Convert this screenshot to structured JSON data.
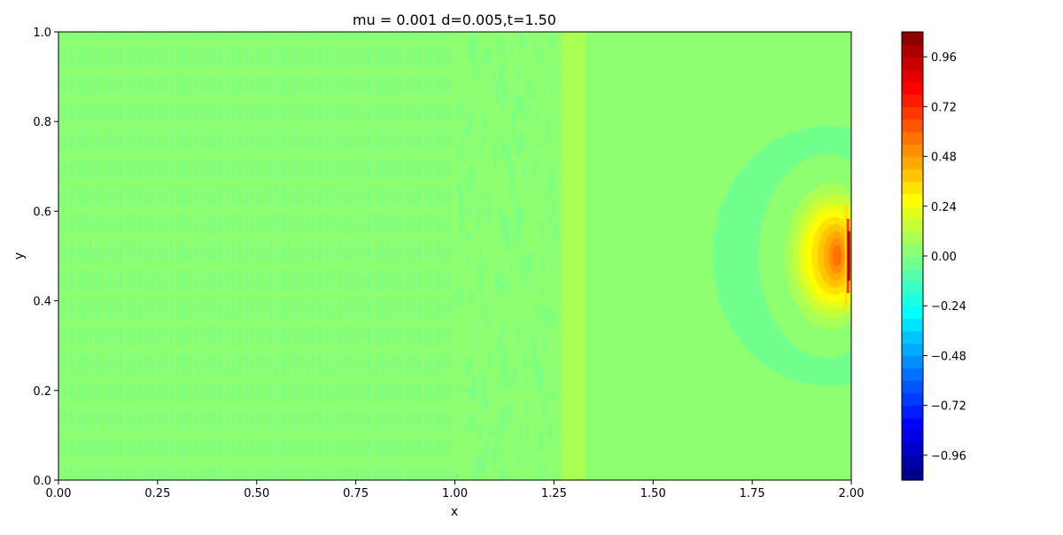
{
  "chart_data": {
    "type": "heatmap",
    "title": "mu = 0.001 d=0.005,t=1.50",
    "xlabel": "x",
    "ylabel": "y",
    "xlim": [
      0.0,
      2.0
    ],
    "ylim": [
      0.0,
      1.0
    ],
    "x_ticks": [
      "0.00",
      "0.25",
      "0.50",
      "0.75",
      "1.00",
      "1.25",
      "1.50",
      "1.75",
      "2.00"
    ],
    "y_ticks": [
      "0.0",
      "0.2",
      "0.4",
      "0.6",
      "0.8",
      "1.0"
    ],
    "colorbar": {
      "min": -1.08,
      "max": 1.08,
      "ticks": [
        "0.96",
        "0.72",
        "0.48",
        "0.24",
        "0.00",
        "−0.24",
        "−0.48",
        "−0.72",
        "−0.96"
      ],
      "colormap": "jet",
      "levels": 36
    },
    "field": {
      "background_value": 0.0,
      "wave_region": {
        "x": [
          0.0,
          1.25
        ],
        "value_range": [
          -0.03,
          0.06
        ]
      },
      "front_band": {
        "x": [
          1.27,
          1.33
        ],
        "value": 0.06
      },
      "pulse": {
        "center_x": 1.94,
        "center_y": 0.5,
        "peak_value": 1.0,
        "core_value": 0.55,
        "halo_value": -0.03,
        "halo_x_range": [
          1.65,
          2.0
        ],
        "halo_y_range": [
          0.21,
          0.79
        ]
      }
    }
  }
}
